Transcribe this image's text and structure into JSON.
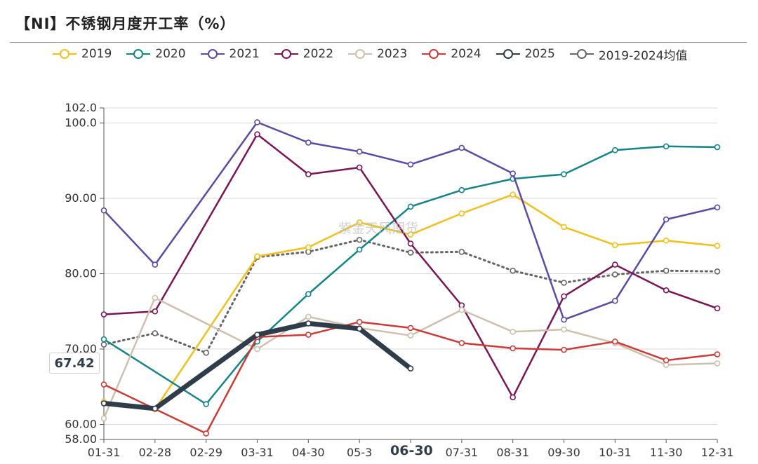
{
  "title": "【NI】不锈钢月度开工率（%）",
  "watermark": "紫金天风期货",
  "highlight": {
    "value_label": "67.42",
    "date_label": "06-30"
  },
  "colors": {
    "2019": "#f2c018",
    "2020": "#12858a",
    "2021": "#5b4aa6",
    "2022": "#7c1458",
    "2023": "#cfc0ad",
    "2024": "#d03a35",
    "2025": "#2f3d4a",
    "avg": "#666666"
  },
  "chart_data": {
    "type": "line",
    "title": "【NI】不锈钢月度开工率（%）",
    "categories": [
      "01-31",
      "02-28",
      "02-29",
      "03-31",
      "04-30",
      "05-3",
      "06-30",
      "07-31",
      "08-31",
      "09-30",
      "10-31",
      "11-30",
      "12-31"
    ],
    "y_tick_labels": [
      "58.00",
      "60.00",
      "70.00",
      "80.00",
      "90.00",
      "100.0",
      "102.0"
    ],
    "y_ticks": [
      58,
      60,
      70,
      80,
      90,
      100,
      102
    ],
    "ylim": [
      58,
      102
    ],
    "grid": true,
    "legend_position": "top",
    "series": [
      {
        "name": "2019",
        "key": "2019",
        "values": [
          63.0,
          62.0,
          null,
          82.3,
          83.5,
          86.8,
          85.2,
          88.0,
          90.5,
          86.2,
          83.8,
          84.4,
          83.7
        ]
      },
      {
        "name": "2020",
        "key": "2020",
        "values": [
          71.3,
          null,
          62.7,
          71.0,
          77.3,
          83.2,
          88.9,
          91.1,
          92.6,
          93.2,
          96.4,
          96.9,
          96.8
        ]
      },
      {
        "name": "2021",
        "key": "2021",
        "values": [
          88.4,
          81.2,
          null,
          100.1,
          97.4,
          96.2,
          94.5,
          96.7,
          93.3,
          73.9,
          76.4,
          87.2,
          88.8
        ]
      },
      {
        "name": "2022",
        "key": "2022",
        "values": [
          74.6,
          75.0,
          null,
          98.5,
          93.2,
          94.1,
          84.0,
          75.8,
          63.6,
          77.0,
          81.2,
          77.8,
          75.4
        ]
      },
      {
        "name": "2023",
        "key": "2023",
        "values": [
          60.8,
          76.8,
          null,
          70.0,
          74.3,
          72.8,
          71.8,
          75.2,
          72.3,
          72.6,
          70.8,
          67.9,
          68.1
        ]
      },
      {
        "name": "2024",
        "key": "2024",
        "values": [
          65.3,
          null,
          58.8,
          71.6,
          71.9,
          73.6,
          72.8,
          70.8,
          70.1,
          69.9,
          71.0,
          68.5,
          69.3
        ]
      },
      {
        "name": "2025",
        "key": "2025",
        "values": [
          62.8,
          62.1,
          null,
          71.9,
          73.4,
          72.7,
          67.42,
          null,
          null,
          null,
          null,
          null,
          null
        ]
      },
      {
        "name": "2019-2024均值",
        "key": "avg",
        "values": [
          70.6,
          72.1,
          69.5,
          82.2,
          82.9,
          84.5,
          82.8,
          82.9,
          80.4,
          78.8,
          79.9,
          80.4,
          80.3
        ]
      }
    ]
  }
}
